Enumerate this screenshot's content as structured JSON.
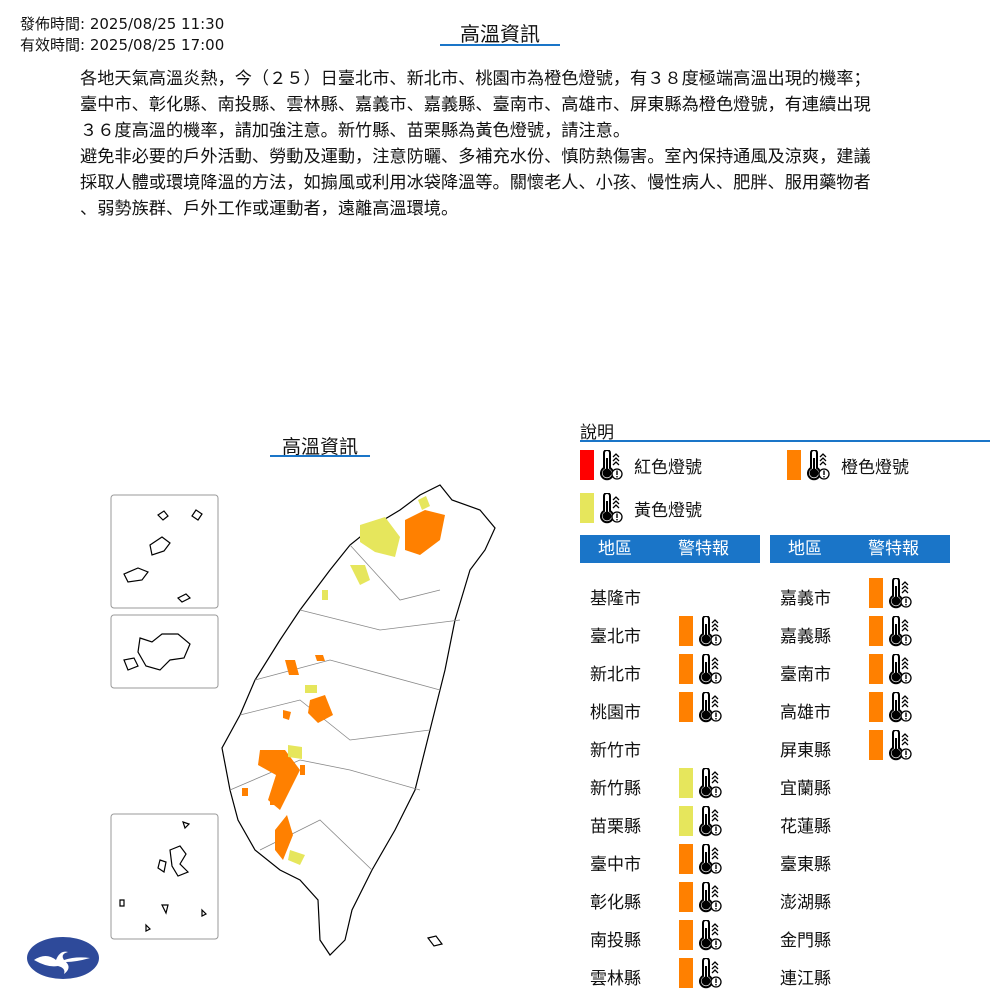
{
  "header": {
    "issued": "發佈時間: 2025/08/25 11:30",
    "valid": "有效時間: 2025/08/25 17:00",
    "title": "高溫資訊"
  },
  "description": [
    "各地天氣高溫炎熱，今（２５）日臺北市、新北市、桃園市為橙色燈號，有３８度極端高溫出現的機率；",
    "臺中市、彰化縣、南投縣、雲林縣、嘉義市、嘉義縣、臺南市、高雄市、屏東縣為橙色燈號，有連續出現",
    "３６度高溫的機率，請加強注意。新竹縣、苗栗縣為黃色燈號，請注意。",
    "避免非必要的戶外活動、勞動及運動，注意防曬、多補充水份、慎防熱傷害。室內保持通風及涼爽，建議",
    "採取人體或環境降溫的方法，如搧風或利用冰袋降溫等。關懷老人、小孩、慢性病人、肥胖、服用藥物者",
    "、弱勢族群、戶外工作或運動者，遠離高溫環境。"
  ],
  "map": {
    "title": "高溫資訊"
  },
  "legend": {
    "title": "說明",
    "items": [
      {
        "label": "紅色燈號",
        "color": "#ff0000"
      },
      {
        "label": "橙色燈號",
        "color": "#ff8000"
      },
      {
        "label": "黃色燈號",
        "color": "#e6e65c"
      }
    ]
  },
  "table": {
    "col_region": "地區",
    "col_warning": "警特報",
    "left": [
      {
        "name": "基隆市",
        "level": ""
      },
      {
        "name": "臺北市",
        "level": "orange"
      },
      {
        "name": "新北市",
        "level": "orange"
      },
      {
        "name": "桃園市",
        "level": "orange"
      },
      {
        "name": "新竹市",
        "level": ""
      },
      {
        "name": "新竹縣",
        "level": "yellow"
      },
      {
        "name": "苗栗縣",
        "level": "yellow"
      },
      {
        "name": "臺中市",
        "level": "orange"
      },
      {
        "name": "彰化縣",
        "level": "orange"
      },
      {
        "name": "南投縣",
        "level": "orange"
      },
      {
        "name": "雲林縣",
        "level": "orange"
      }
    ],
    "right": [
      {
        "name": "嘉義市",
        "level": "orange"
      },
      {
        "name": "嘉義縣",
        "level": "orange"
      },
      {
        "name": "臺南市",
        "level": "orange"
      },
      {
        "name": "高雄市",
        "level": "orange"
      },
      {
        "name": "屏東縣",
        "level": "orange"
      },
      {
        "name": "宜蘭縣",
        "level": ""
      },
      {
        "name": "花蓮縣",
        "level": ""
      },
      {
        "name": "臺東縣",
        "level": ""
      },
      {
        "name": "澎湖縣",
        "level": ""
      },
      {
        "name": "金門縣",
        "level": ""
      },
      {
        "name": "連江縣",
        "level": ""
      }
    ]
  },
  "colors": {
    "accent": "#1a75c8",
    "orange": "#ff8000",
    "yellow": "#e6e65c",
    "red": "#ff0000",
    "logo": "#2e4a9a"
  },
  "icons": {
    "thermometer": "heat-thermometer-icon",
    "logo": "cwa-logo"
  }
}
